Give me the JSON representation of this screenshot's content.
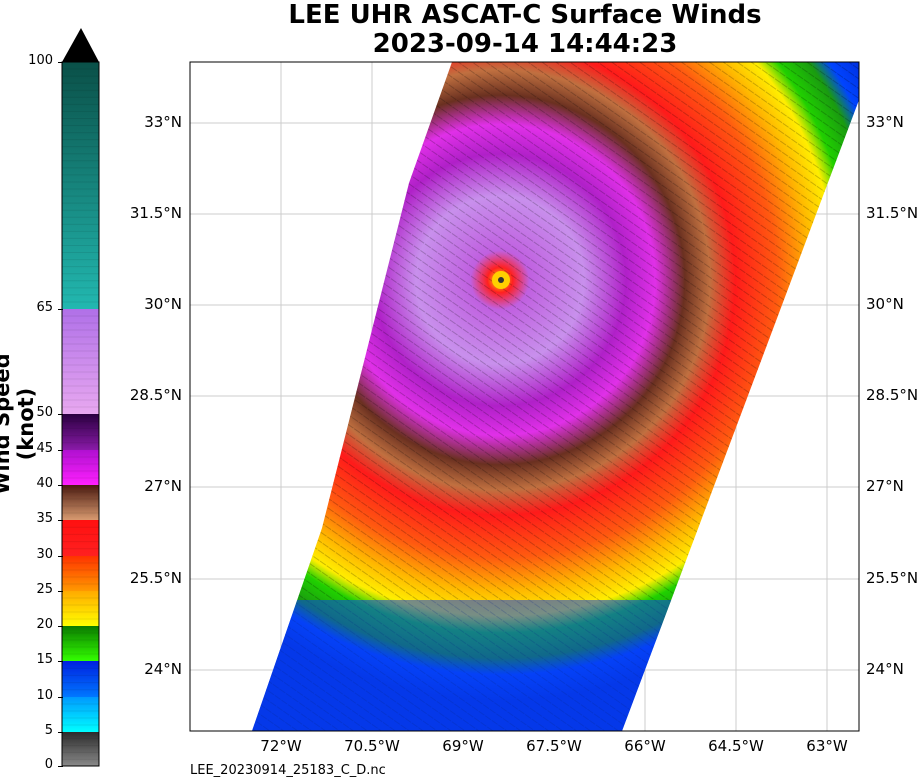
{
  "title_line1": "LEE UHR ASCAT-C Surface Winds",
  "title_line2": "2023-09-14 14:44:23",
  "filename": "LEE_20230914_25183_C_D.nc",
  "colorbar": {
    "title": "Wind Speed (knot)",
    "tick_labels": [
      "0",
      "5",
      "10",
      "15",
      "20",
      "25",
      "30",
      "35",
      "40",
      "45",
      "50",
      "65",
      "100"
    ],
    "min": 0,
    "max": 100,
    "bands": [
      {
        "from": 0,
        "to": 5,
        "color": "#6e6e6e"
      },
      {
        "from": 5,
        "to": 10,
        "color": "#00e5ff"
      },
      {
        "from": 10,
        "to": 15,
        "color": "#0055ff"
      },
      {
        "from": 15,
        "to": 20,
        "color": "#22cc00"
      },
      {
        "from": 20,
        "to": 25,
        "color": "#ffdd00"
      },
      {
        "from": 25,
        "to": 30,
        "color": "#ff7a00"
      },
      {
        "from": 30,
        "to": 35,
        "color": "#ff1a1a"
      },
      {
        "from": 35,
        "to": 40,
        "color": "#a0663a"
      },
      {
        "from": 40,
        "to": 45,
        "color": "#e020e8"
      },
      {
        "from": 45,
        "to": 50,
        "color": "#8a1aa0"
      },
      {
        "from": 50,
        "to": 65,
        "color": "#d89cf0"
      },
      {
        "from": 65,
        "to": 100,
        "color": "#1f8a80"
      }
    ]
  },
  "map": {
    "lat_labels": [
      "33°N",
      "31.5°N",
      "30°N",
      "28.5°N",
      "27°N",
      "25.5°N",
      "24°N"
    ],
    "lon_labels": [
      "72°W",
      "70.5°W",
      "69°W",
      "67.5°W",
      "66°W",
      "64.5°W",
      "63°W"
    ],
    "storm_center_label": ""
  }
}
